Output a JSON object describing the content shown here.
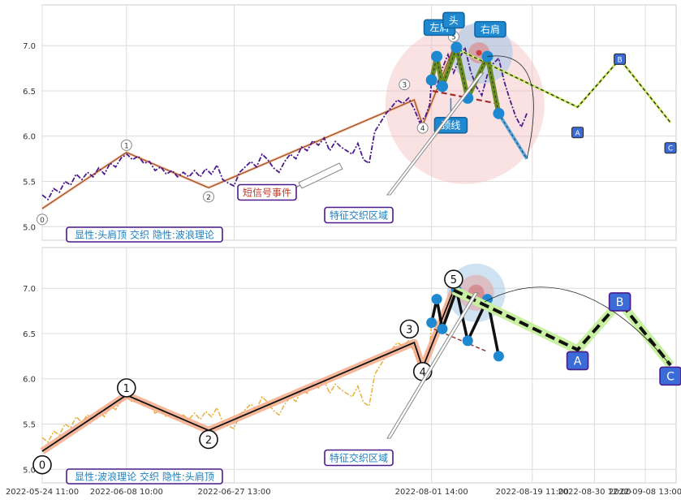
{
  "chart_data": [
    {
      "type": "line",
      "title": "",
      "x_start": "2022-05-24 11:00",
      "x_end": "2022-09-14 00:00",
      "ylim": [
        4.85,
        7.45
      ],
      "yticks": [
        5.0,
        5.5,
        6.0,
        6.5,
        7.0
      ],
      "grid": true,
      "price_series": [
        [
          "2022-05-24 11:00",
          5.35
        ],
        [
          "2022-05-25 12:00",
          5.3
        ],
        [
          "2022-05-26 12:00",
          5.42
        ],
        [
          "2022-05-27 12:00",
          5.38
        ],
        [
          "2022-05-28 12:00",
          5.5
        ],
        [
          "2022-05-29 12:00",
          5.46
        ],
        [
          "2022-05-30 12:00",
          5.58
        ],
        [
          "2022-05-31 12:00",
          5.52
        ],
        [
          "2022-06-01 12:00",
          5.6
        ],
        [
          "2022-06-02 12:00",
          5.55
        ],
        [
          "2022-06-03 12:00",
          5.65
        ],
        [
          "2022-06-04 12:00",
          5.58
        ],
        [
          "2022-06-05 12:00",
          5.7
        ],
        [
          "2022-06-06 12:00",
          5.66
        ],
        [
          "2022-06-07 12:00",
          5.76
        ],
        [
          "2022-06-08 12:00",
          5.8
        ],
        [
          "2022-06-09 12:00",
          5.74
        ],
        [
          "2022-06-10 12:00",
          5.78
        ],
        [
          "2022-06-11 12:00",
          5.7
        ],
        [
          "2022-06-12 12:00",
          5.72
        ],
        [
          "2022-06-13 12:00",
          5.62
        ],
        [
          "2022-06-14 12:00",
          5.66
        ],
        [
          "2022-06-15 12:00",
          5.58
        ],
        [
          "2022-06-16 12:00",
          5.62
        ],
        [
          "2022-06-17 12:00",
          5.55
        ],
        [
          "2022-06-18 12:00",
          5.6
        ],
        [
          "2022-06-19 12:00",
          5.55
        ],
        [
          "2022-06-20 12:00",
          5.62
        ],
        [
          "2022-06-21 12:00",
          5.55
        ],
        [
          "2022-06-22 12:00",
          5.64
        ],
        [
          "2022-06-23 12:00",
          5.58
        ],
        [
          "2022-06-24 12:00",
          5.68
        ],
        [
          "2022-06-25 12:00",
          5.52
        ],
        [
          "2022-06-26 12:00",
          5.48
        ],
        [
          "2022-06-27 12:00",
          5.45
        ],
        [
          "2022-06-28 12:00",
          5.6
        ],
        [
          "2022-06-29 12:00",
          5.66
        ],
        [
          "2022-06-30 12:00",
          5.72
        ],
        [
          "2022-07-01 12:00",
          5.66
        ],
        [
          "2022-07-02 12:00",
          5.8
        ],
        [
          "2022-07-03 12:00",
          5.74
        ],
        [
          "2022-07-04 12:00",
          5.65
        ],
        [
          "2022-07-05 12:00",
          5.6
        ],
        [
          "2022-07-06 12:00",
          5.72
        ],
        [
          "2022-07-07 12:00",
          5.8
        ],
        [
          "2022-07-08 12:00",
          5.75
        ],
        [
          "2022-07-09 12:00",
          5.88
        ],
        [
          "2022-07-10 12:00",
          5.84
        ],
        [
          "2022-07-11 12:00",
          5.95
        ],
        [
          "2022-07-12 12:00",
          5.9
        ],
        [
          "2022-07-13 12:00",
          5.98
        ],
        [
          "2022-07-14 12:00",
          5.84
        ],
        [
          "2022-07-15 12:00",
          5.94
        ],
        [
          "2022-07-16 12:00",
          5.88
        ],
        [
          "2022-07-17 12:00",
          5.84
        ],
        [
          "2022-07-18 12:00",
          5.8
        ],
        [
          "2022-07-19 12:00",
          5.92
        ],
        [
          "2022-07-20 12:00",
          5.74
        ],
        [
          "2022-07-21 12:00",
          5.7
        ],
        [
          "2022-07-22 12:00",
          6.05
        ],
        [
          "2022-07-23 12:00",
          6.15
        ],
        [
          "2022-07-24 12:00",
          6.25
        ],
        [
          "2022-07-25 12:00",
          6.32
        ],
        [
          "2022-07-26 12:00",
          6.4
        ],
        [
          "2022-07-27 12:00",
          6.36
        ],
        [
          "2022-07-28 12:00",
          6.42
        ],
        [
          "2022-07-29 12:00",
          6.3
        ],
        [
          "2022-07-30 12:00",
          6.15
        ],
        [
          "2022-07-31 12:00",
          6.22
        ],
        [
          "2022-08-01 06:00",
          6.35
        ],
        [
          "2022-08-01 14:00",
          6.62
        ],
        [
          "2022-08-02 12:00",
          6.55
        ],
        [
          "2022-08-03 12:00",
          6.75
        ],
        [
          "2022-08-04 12:00",
          6.9
        ],
        [
          "2022-08-05 12:00",
          6.7
        ],
        [
          "2022-08-06 12:00",
          6.85
        ],
        [
          "2022-08-07 12:00",
          6.98
        ],
        [
          "2022-08-08 12:00",
          6.72
        ],
        [
          "2022-08-09 12:00",
          6.55
        ],
        [
          "2022-08-10 12:00",
          6.45
        ],
        [
          "2022-08-11 12:00",
          6.68
        ],
        [
          "2022-08-12 12:00",
          6.8
        ],
        [
          "2022-08-13 12:00",
          6.86
        ],
        [
          "2022-08-14 12:00",
          6.6
        ],
        [
          "2022-08-15 12:00",
          6.4
        ],
        [
          "2022-08-16 12:00",
          6.22
        ],
        [
          "2022-08-17 12:00",
          6.1
        ],
        [
          "2022-08-18 12:00",
          6.25
        ]
      ],
      "patterns": [
        {
          "name": "头肩顶",
          "points": [
            [
              "2022-08-01 14:00",
              6.62
            ],
            [
              "2022-08-02 12:00",
              6.88
            ],
            [
              "2022-08-03 12:00",
              6.55
            ],
            [
              "2022-08-06 00:00",
              6.98
            ],
            [
              "2022-08-08 00:00",
              6.42
            ],
            [
              "2022-08-11 12:00",
              6.88
            ],
            [
              "2022-08-13 12:00",
              6.25
            ]
          ],
          "projection": [
            [
              "2022-08-13 12:00",
              6.25
            ],
            [
              "2022-08-18 12:00",
              5.75
            ]
          ]
        },
        {
          "name": "波浪理论",
          "waves": [
            {
              "label": "0",
              "x": "2022-05-24 11:00",
              "y": 5.2
            },
            {
              "label": "1",
              "x": "2022-06-08 10:00",
              "y": 5.82
            },
            {
              "label": "2",
              "x": "2022-06-23 00:00",
              "y": 5.43
            },
            {
              "label": "3",
              "x": "2022-07-29 12:00",
              "y": 6.4
            },
            {
              "label": "4",
              "x": "2022-07-31 00:00",
              "y": 6.12
            },
            {
              "label": "5",
              "x": "2022-08-05 12:00",
              "y": 6.98
            },
            {
              "label": "A",
              "x": "2022-08-27 12:00",
              "y": 6.32
            },
            {
              "label": "B",
              "x": "2022-09-04 00:00",
              "y": 6.85
            },
            {
              "label": "C",
              "x": "2022-09-13 00:00",
              "y": 6.15
            }
          ]
        }
      ],
      "annotations": {
        "left_shoulder": "左肩",
        "head": "头",
        "right_shoulder": "右肩",
        "neckline": "颈线",
        "short_signal_event": "短信号事件",
        "feature_zone": "特征交织区域",
        "summary": "显性:头肩顶 交织 隐性:波浪理论"
      }
    },
    {
      "type": "line",
      "title": "",
      "ylim": [
        4.85,
        7.45
      ],
      "yticks": [
        5.0,
        5.5,
        6.0,
        6.5,
        7.0
      ],
      "grid": true,
      "xticks": [
        "2022-05-24 11:00",
        "2022-06-08 10:00",
        "2022-06-27 13:00",
        "2022-08-01 14:00",
        "2022-08-19 11:00",
        "2022-08-30 12:00",
        "2022-09-08 13:00"
      ],
      "annotations": {
        "feature_zone": "特征交织区域",
        "summary": "显性:波浪理论 交织 隐性:头肩顶"
      }
    }
  ],
  "colors": {
    "price_top": "#4b1b8c",
    "price_bottom": "#e8b040",
    "hs_line": "#6b8e23",
    "node": "#1e88d0",
    "label_fill": "#1e88d0",
    "wave_dash": "#000000",
    "wave_fill_top": "#2e8b57",
    "corr_fill": "#c8f0a0",
    "band": "#f4a582",
    "summary_text": "#1f7fbf",
    "summary_border": "#4b1b8c",
    "event_text": "#c0392b",
    "abc_fill": "#3a6bd6"
  }
}
